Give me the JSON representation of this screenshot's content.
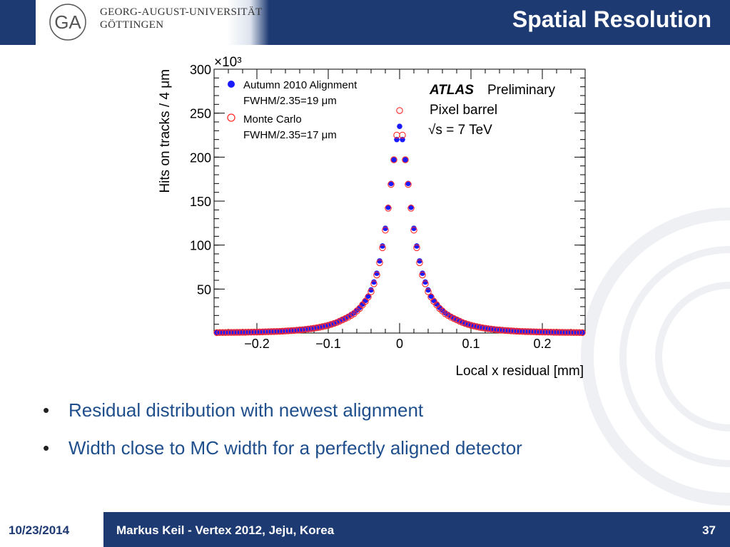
{
  "header": {
    "university_line1": "GEORG-AUGUST-UNIVERSITÄT",
    "university_line2": "GÖTTINGEN",
    "title": "Spatial Resolution",
    "logo_icon": "university-seal-icon"
  },
  "bullets": [
    "Residual distribution with newest alignment",
    "Width close to MC width for a perfectly aligned detector"
  ],
  "footer": {
    "date": "10/23/2014",
    "text": "Markus Keil - Vertex 2012, Jeju, Korea",
    "page": "37"
  },
  "chart_data": {
    "type": "scatter",
    "xlabel": "Local x residual [mm]",
    "ylabel": "Hits on tracks / 4 μm",
    "y_multiplier": "×10³",
    "xlim": [
      -0.26,
      0.26
    ],
    "ylim": [
      0,
      300
    ],
    "x_ticks": [
      -0.2,
      -0.1,
      0,
      0.1,
      0.2
    ],
    "x_tick_labels": [
      "−0.2",
      "−0.1",
      "0",
      "0.1",
      "0.2"
    ],
    "y_ticks": [
      50,
      100,
      150,
      200,
      250,
      300
    ],
    "y_tick_labels": [
      "50",
      "100",
      "150",
      "200",
      "250",
      "300"
    ],
    "annotation": {
      "experiment": "ATLAS",
      "status": "Preliminary",
      "line2": "Pixel barrel",
      "line3": "√s = 7 TeV"
    },
    "legend_position": "top-left",
    "series": [
      {
        "name": "Autumn 2010 Alignment",
        "note": "FWHM/2.35=19 μm",
        "marker": "filled-circle",
        "color": "#1a1aff",
        "x": [
          0,
          0.004,
          0.008,
          0.012,
          0.016,
          0.02,
          0.024,
          0.028,
          0.032,
          0.036,
          0.04,
          0.044,
          0.048,
          0.052,
          0.056,
          0.06,
          0.064,
          0.068,
          0.072,
          0.076,
          0.08,
          0.084,
          0.088,
          0.092,
          0.096,
          0.1,
          0.104,
          0.108,
          0.112,
          0.116,
          0.12,
          0.124,
          0.128,
          0.132,
          0.136,
          0.14,
          0.144,
          0.148,
          0.152,
          0.156,
          0.16,
          0.164,
          0.168,
          0.172,
          0.176,
          0.18,
          0.184,
          0.188,
          0.192,
          0.196,
          0.2,
          0.204,
          0.208,
          0.212,
          0.216,
          0.22,
          0.224,
          0.228,
          0.232,
          0.236,
          0.24,
          0.244,
          0.248,
          0.252,
          0.256
        ],
        "y": [
          235,
          220,
          197,
          170,
          143,
          119,
          99,
          82,
          68,
          58,
          49,
          42,
          37,
          33,
          29,
          26,
          23,
          21,
          19,
          17,
          15.5,
          14,
          12.5,
          11,
          10,
          9,
          8.2,
          7.5,
          6.8,
          6.2,
          5.6,
          5.1,
          4.7,
          4.3,
          3.9,
          3.6,
          3.3,
          3.0,
          2.8,
          2.6,
          2.4,
          2.2,
          2.0,
          1.9,
          1.8,
          1.7,
          1.6,
          1.5,
          1.4,
          1.3,
          1.2,
          1.1,
          1.05,
          1.0,
          0.95,
          0.9,
          0.85,
          0.8,
          0.75,
          0.7,
          0.7,
          0.65,
          0.6,
          0.6,
          0.55
        ]
      },
      {
        "name": "Monte Carlo",
        "note": "FWHM/2.35=17 μm",
        "marker": "open-circle",
        "color": "#ff2a2a",
        "x": [
          0,
          0.004,
          0.008,
          0.012,
          0.016,
          0.02,
          0.024,
          0.028,
          0.032,
          0.036,
          0.04,
          0.044,
          0.048,
          0.052,
          0.056,
          0.06,
          0.064,
          0.068,
          0.072,
          0.076,
          0.08,
          0.084,
          0.088,
          0.092,
          0.096,
          0.1,
          0.104,
          0.108,
          0.112,
          0.116,
          0.12,
          0.124,
          0.128,
          0.132,
          0.136,
          0.14,
          0.144,
          0.148,
          0.152,
          0.156,
          0.16,
          0.164,
          0.168,
          0.172,
          0.176,
          0.18,
          0.184,
          0.188,
          0.192,
          0.196,
          0.2,
          0.204,
          0.208,
          0.212,
          0.216,
          0.22,
          0.224,
          0.228,
          0.232,
          0.236,
          0.24,
          0.244,
          0.248,
          0.252,
          0.256
        ],
        "y": [
          253,
          225,
          197,
          169,
          142,
          117,
          97,
          80,
          66,
          56,
          47,
          41,
          36,
          32,
          28,
          25,
          22,
          20,
          18,
          16.5,
          15,
          13.5,
          12,
          10.8,
          9.8,
          8.8,
          8.0,
          7.3,
          6.6,
          6.0,
          5.5,
          5.0,
          4.6,
          4.2,
          3.8,
          3.5,
          3.2,
          2.9,
          2.7,
          2.5,
          2.3,
          2.1,
          1.95,
          1.85,
          1.75,
          1.65,
          1.55,
          1.45,
          1.35,
          1.25,
          1.15,
          1.08,
          1.02,
          0.97,
          0.92,
          0.87,
          0.82,
          0.78,
          0.74,
          0.7,
          0.66,
          0.63,
          0.6,
          0.57,
          0.54
        ]
      }
    ]
  }
}
